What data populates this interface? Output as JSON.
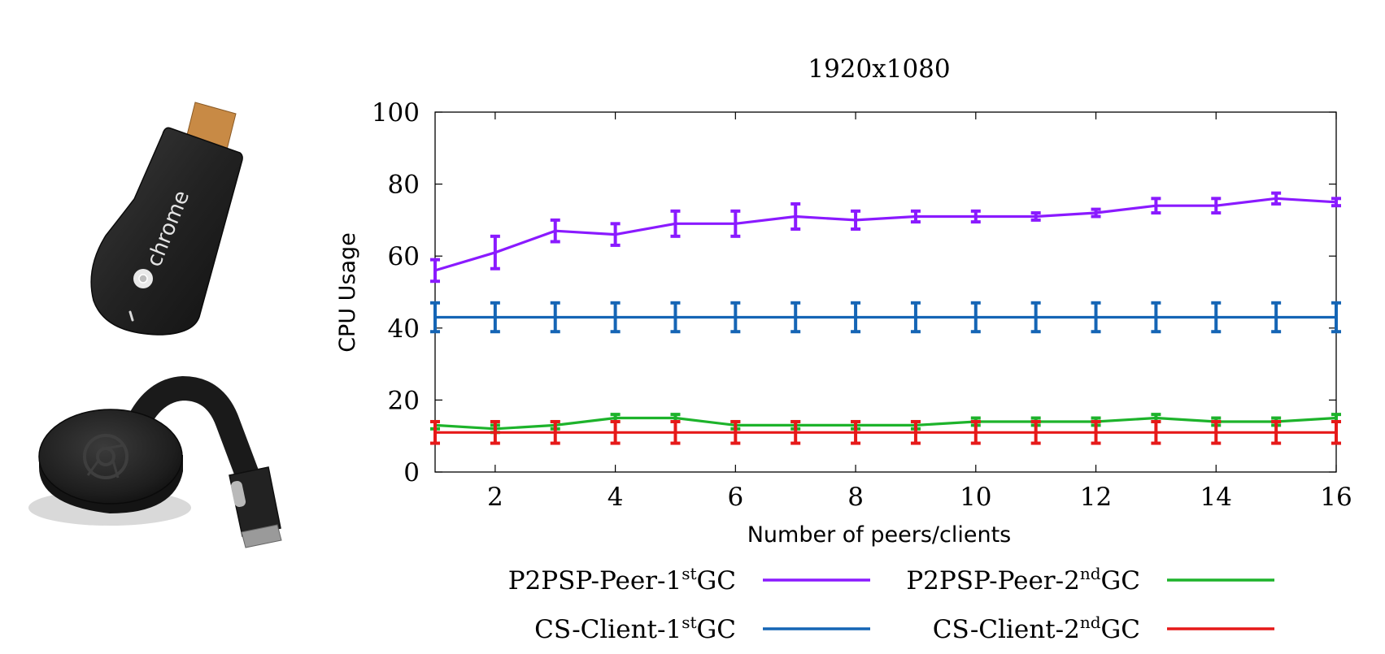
{
  "colors": {
    "p2psp_1st": "#8a1aff",
    "cs_1st": "#1565b5",
    "p2psp_2nd": "#1db32b",
    "cs_2nd": "#e61919"
  },
  "images": {
    "top_device": "chromecast-1st-gen-dongle",
    "top_device_brand_text": "chrome",
    "bottom_device": "chromecast-2nd-gen-puck"
  },
  "chart_data": {
    "type": "line",
    "title": "1920x1080",
    "xlabel": "Number of peers/clients",
    "ylabel": "CPU Usage",
    "xlim": [
      1,
      16
    ],
    "ylim": [
      0,
      100
    ],
    "xticks": [
      "2",
      "4",
      "6",
      "8",
      "10",
      "12",
      "14",
      "16"
    ],
    "yticks": [
      "0",
      "20",
      "40",
      "60",
      "80",
      "100"
    ],
    "grid": false,
    "legend_position": "bottom",
    "x": [
      1,
      2,
      3,
      4,
      5,
      6,
      7,
      8,
      9,
      10,
      11,
      12,
      13,
      14,
      15,
      16
    ],
    "series": [
      {
        "key": "p2psp_1st",
        "legend_prefix": "P2PSP-Peer-1",
        "legend_sup": "st",
        "legend_suffix": "GC",
        "values": [
          56,
          61,
          67,
          66,
          69,
          69,
          71,
          70,
          71,
          71,
          71,
          72,
          74,
          74,
          76,
          75
        ],
        "errors": [
          3,
          4.5,
          3,
          3,
          3.5,
          3.5,
          3.5,
          2.5,
          1.5,
          1.5,
          1,
          1,
          2,
          2,
          1.5,
          1
        ]
      },
      {
        "key": "cs_1st",
        "legend_prefix": "CS-Client-1",
        "legend_sup": "st",
        "legend_suffix": "GC",
        "values": [
          43,
          43,
          43,
          43,
          43,
          43,
          43,
          43,
          43,
          43,
          43,
          43,
          43,
          43,
          43,
          43
        ],
        "errors": [
          4,
          4,
          4,
          4,
          4,
          4,
          4,
          4,
          4,
          4,
          4,
          4,
          4,
          4,
          4,
          4
        ]
      },
      {
        "key": "p2psp_2nd",
        "legend_prefix": "P2PSP-Peer-2",
        "legend_sup": "nd",
        "legend_suffix": "GC",
        "values": [
          13,
          12,
          13,
          15,
          15,
          13,
          13,
          13,
          13,
          14,
          14,
          14,
          15,
          14,
          14,
          15
        ],
        "errors": [
          1,
          1,
          1,
          1,
          1,
          1,
          1,
          1,
          1,
          1,
          1,
          1,
          1,
          1,
          1,
          1
        ]
      },
      {
        "key": "cs_2nd",
        "legend_prefix": "CS-Client-2",
        "legend_sup": "nd",
        "legend_suffix": "GC",
        "values": [
          11,
          11,
          11,
          11,
          11,
          11,
          11,
          11,
          11,
          11,
          11,
          11,
          11,
          11,
          11,
          11
        ],
        "errors": [
          3,
          3,
          3,
          3,
          3,
          3,
          3,
          3,
          3,
          3,
          3,
          3,
          3,
          3,
          3,
          3
        ]
      }
    ]
  }
}
